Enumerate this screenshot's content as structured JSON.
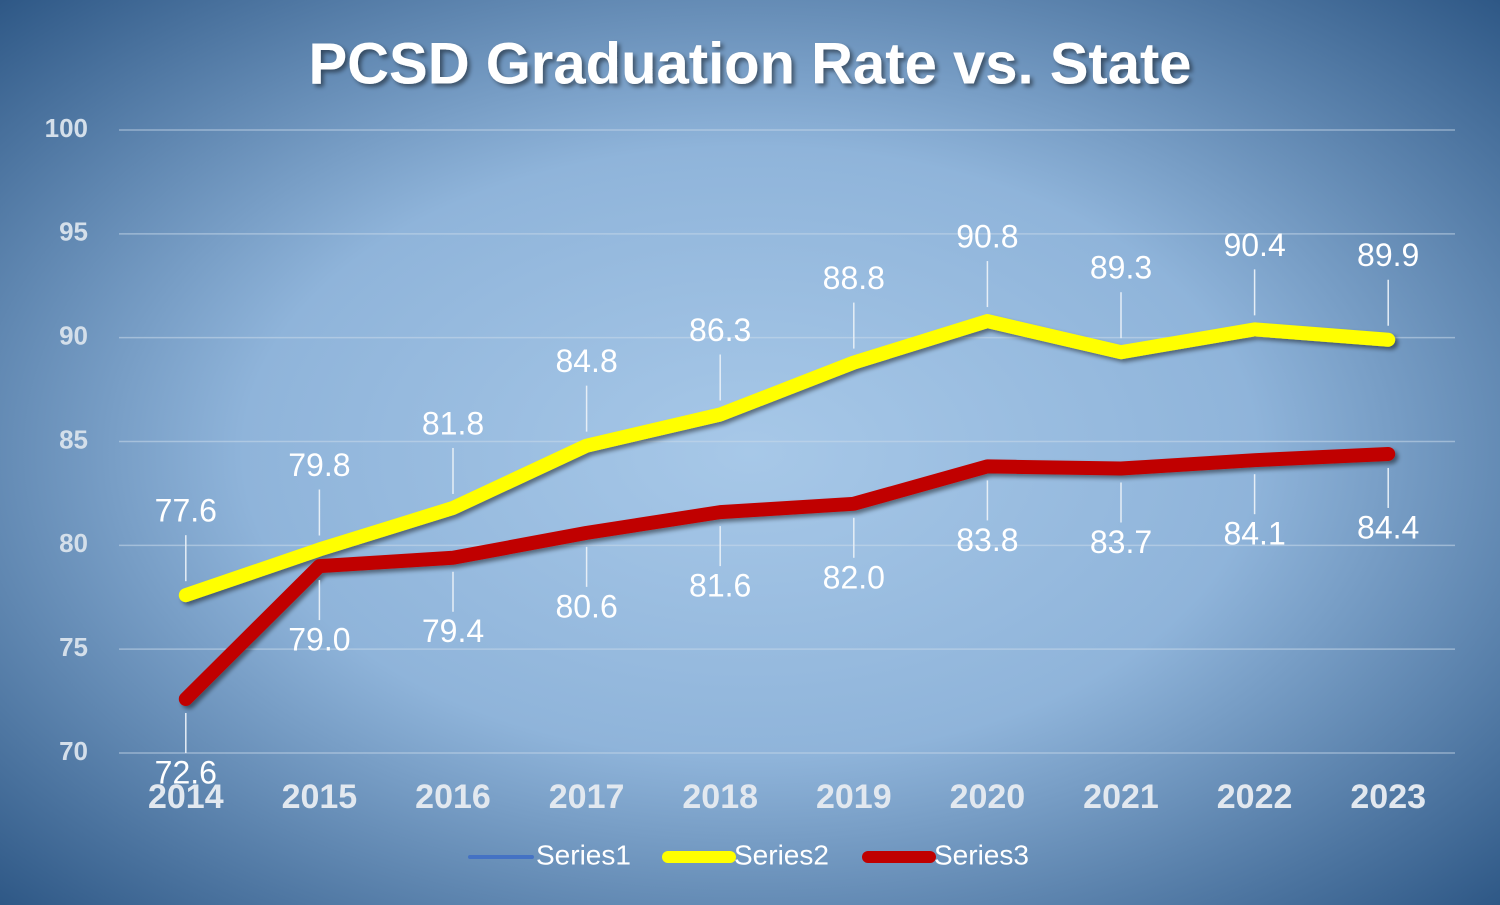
{
  "chart_data": {
    "type": "line",
    "title": "PCSD Graduation Rate vs. State",
    "categories": [
      "2014",
      "2015",
      "2016",
      "2017",
      "2018",
      "2019",
      "2020",
      "2021",
      "2022",
      "2023"
    ],
    "series": [
      {
        "name": "Series1",
        "color": "#4472c4",
        "values": [
          null,
          null,
          null,
          null,
          null,
          null,
          null,
          null,
          null,
          null
        ]
      },
      {
        "name": "Series2",
        "color": "#ffff00",
        "values": [
          77.6,
          79.8,
          81.8,
          84.8,
          86.3,
          88.8,
          90.8,
          89.3,
          90.4,
          89.9
        ]
      },
      {
        "name": "Series3",
        "color": "#c00000",
        "values": [
          72.6,
          79.0,
          79.4,
          80.6,
          81.6,
          82.0,
          83.8,
          83.7,
          84.1,
          84.4
        ],
        "value_labels": [
          "72.6",
          "79.0",
          "79.4",
          "80.6",
          "81.6",
          "82.0",
          "83.8",
          "83.7",
          "84.1",
          "84.4"
        ]
      }
    ],
    "ylim": [
      70,
      100
    ],
    "yticks": [
      70,
      75,
      80,
      85,
      90,
      95,
      100
    ],
    "grid": true,
    "legend": "bottom"
  }
}
